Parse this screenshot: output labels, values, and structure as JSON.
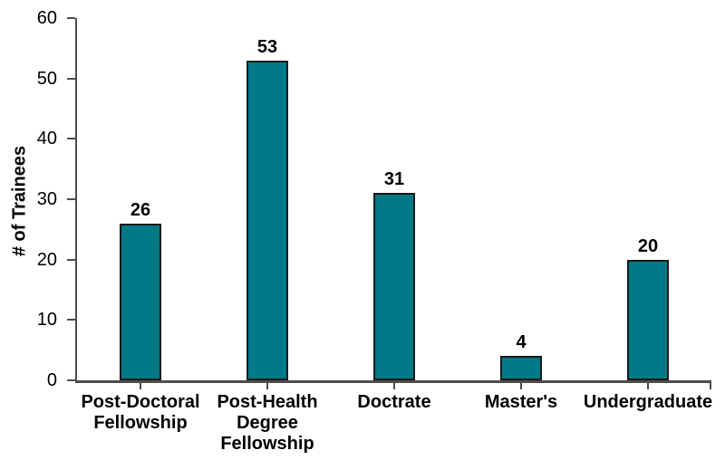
{
  "chart_data": {
    "type": "bar",
    "categories": [
      "Post-Doctoral\nFellowship",
      "Post-Health\nDegree\nFellowship",
      "Doctrate",
      "Master's",
      "Undergraduate"
    ],
    "values": [
      26,
      53,
      31,
      4,
      20
    ],
    "value_labels": [
      "26",
      "53",
      "31",
      "4",
      "20"
    ],
    "title": "",
    "xlabel": "",
    "ylabel": "# of Trainees",
    "ylim": [
      0,
      60
    ],
    "yticks": [
      0,
      10,
      20,
      30,
      40,
      50,
      60
    ],
    "grid": false,
    "legend_position": "none",
    "bar_color": "#007987",
    "bar_border_color": "#1a1a1a",
    "axis_color": "#4d4d4d",
    "text_color": "#000000",
    "background_color": "#ffffff"
  }
}
